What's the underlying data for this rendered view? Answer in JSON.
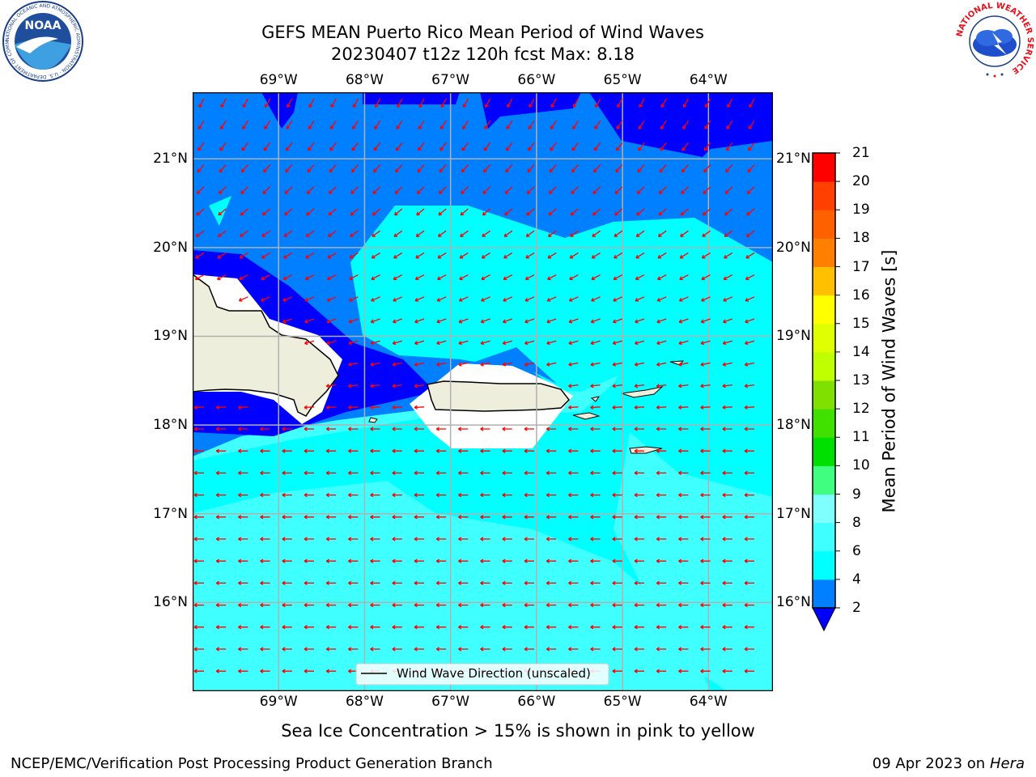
{
  "title": {
    "line1": "GEFS MEAN Puerto Rico Mean Period of Wind Waves",
    "line2": "20230407 t12z 120h fcst   Max: 8.18"
  },
  "map": {
    "lon_range": [
      -70.0,
      -63.25
    ],
    "lat_range": [
      15.0,
      21.75
    ],
    "lon_ticks": [
      "69°W",
      "68°W",
      "67°W",
      "66°W",
      "65°W",
      "64°W"
    ],
    "lat_ticks": [
      "21°N",
      "20°N",
      "19°N",
      "18°N",
      "17°N",
      "16°N"
    ],
    "grid": true,
    "legend": {
      "label": "Wind Wave Direction (unscaled)",
      "placement": "bottom-center"
    },
    "arrow_color": "#ff0000",
    "land_color": "#eeeedd"
  },
  "colorbar": {
    "label": "Mean Period of Wind Waves [s]",
    "tick_labels": [
      "21",
      "20",
      "19",
      "18",
      "17",
      "16",
      "15",
      "14",
      "13",
      "12",
      "11",
      "10",
      "9",
      "8",
      "6",
      "4",
      "2"
    ],
    "levels": [
      2,
      4,
      6,
      8,
      9,
      10,
      11,
      12,
      13,
      14,
      15,
      16,
      17,
      18,
      19,
      20,
      21
    ],
    "colors": [
      "#0080ff",
      "#00ffff",
      "#40ffff",
      "#80ffff",
      "#40ff80",
      "#00e000",
      "#40e000",
      "#80e000",
      "#c0ff00",
      "#e0ff00",
      "#ffff00",
      "#ffc000",
      "#ff8000",
      "#ff6000",
      "#ff4000",
      "#ff0000"
    ],
    "under_color": "#0000ff",
    "extend": "min"
  },
  "period_colors": {
    "lt2": "#0000ff",
    "2to4": "#0080ff",
    "4to6": "#00ffff",
    "6to8": "#40ffff"
  },
  "caption": "Sea Ice Concentration > 15% is shown in pink to yellow",
  "footer": {
    "left": "NCEP/EMC/Verification Post Processing Product Generation Branch",
    "date": "09 Apr 2023 on ",
    "machine": "Hera"
  },
  "logos": {
    "noaa": {
      "text": "NOAA",
      "ring_text": "NATIONAL OCEANIC AND ATMOSPHERIC ADMINISTRATION · U.S. DEPARTMENT OF COMMERCE"
    },
    "nws": {
      "ring_text": "NATIONAL WEATHER SERVICE"
    }
  }
}
